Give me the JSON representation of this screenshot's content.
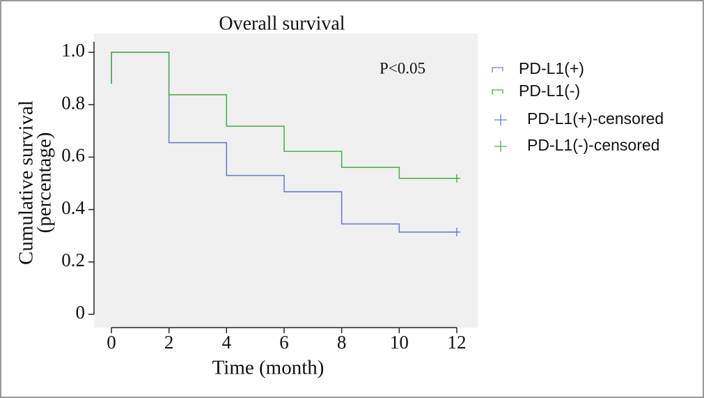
{
  "chart_data": {
    "type": "step",
    "title": "Overall survival",
    "x_label": "Time (month)",
    "y_label": [
      "Cumulative survival",
      "(percentage)"
    ],
    "annotation": "P<0.05",
    "xlim": [
      0,
      12
    ],
    "xticks": [
      0,
      2,
      4,
      6,
      8,
      10,
      12
    ],
    "ylim": [
      0,
      1
    ],
    "yticks": [
      0,
      0.2,
      0.4,
      0.6,
      0.8,
      {
        "value": 1,
        "label": "1.0"
      }
    ],
    "series": [
      {
        "name": "PD-L1(+)",
        "color": "#6e7fc6",
        "x": [
          0,
          0,
          2,
          4,
          6,
          8,
          10,
          12
        ],
        "values": [
          0.88,
          1,
          0.655,
          0.53,
          0.468,
          0.345,
          0.314,
          0.314
        ]
      },
      {
        "name": "PD-L1(-)",
        "color": "#4cb050",
        "x": [
          0,
          0,
          2,
          4,
          6,
          8,
          10,
          12
        ],
        "values": [
          0.88,
          1,
          0.838,
          0.718,
          0.622,
          0.561,
          0.519,
          0.519
        ]
      },
      {
        "name": "PD-L1(+)-censored",
        "color": "#6e7fc6",
        "censored": true,
        "x": [
          12
        ],
        "values": [
          0.314
        ]
      },
      {
        "name": "PD-L1(-)-censored",
        "color": "#4cb050",
        "censored": true,
        "x": [
          12
        ],
        "values": [
          0.519
        ]
      }
    ]
  }
}
